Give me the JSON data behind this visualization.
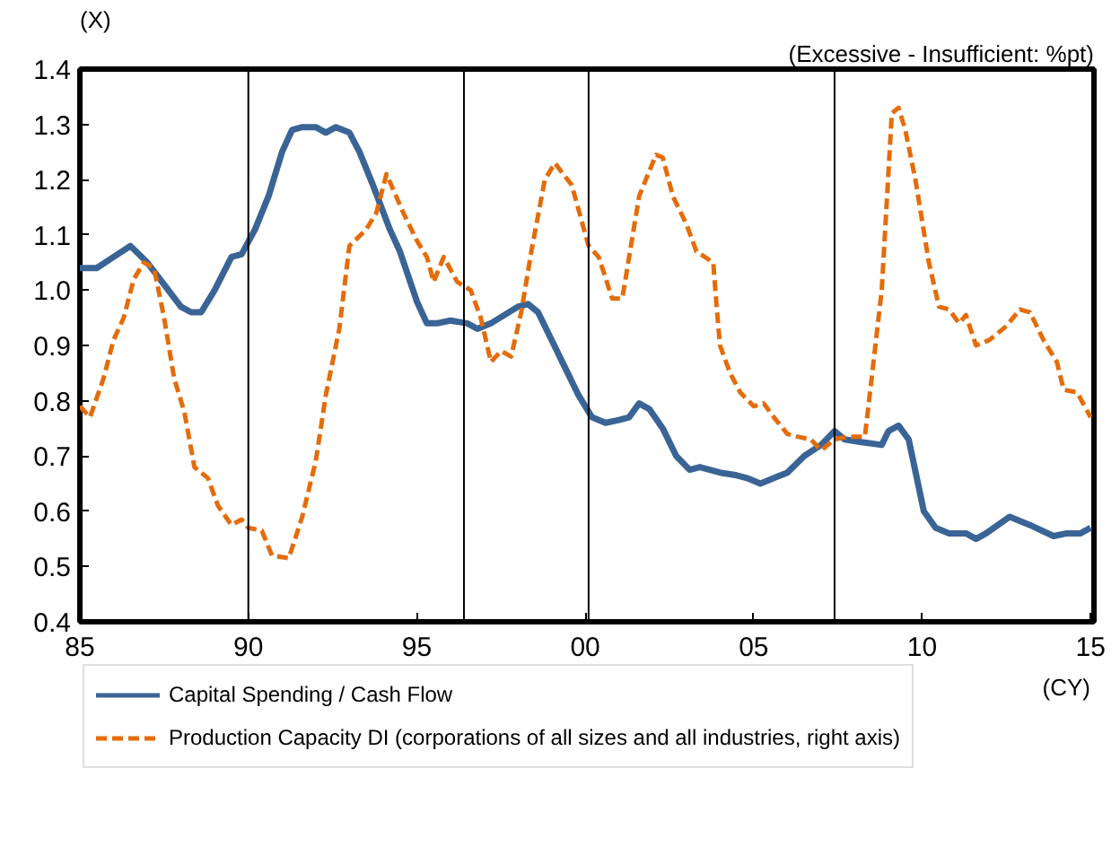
{
  "chart_data": {
    "type": "line",
    "ylabel": "(X)",
    "y2label": "(Excessive - Insufficient: %pt)",
    "annotations": [
      "(CY)"
    ],
    "xlim": [
      1985,
      2015.1
    ],
    "xticks": [
      {
        "value": 1985,
        "label": "85"
      },
      {
        "value": 1990,
        "label": "90"
      },
      {
        "value": 1995,
        "label": "95"
      },
      {
        "value": 2000,
        "label": "00"
      },
      {
        "value": 2005,
        "label": "05"
      },
      {
        "value": 2010,
        "label": "10"
      },
      {
        "value": 2015,
        "label": "15"
      }
    ],
    "ylim": [
      0.4,
      1.4
    ],
    "yticks": [
      {
        "value": 0.4,
        "label": "0.4"
      },
      {
        "value": 0.5,
        "label": "0.5"
      },
      {
        "value": 0.6,
        "label": "0.6"
      },
      {
        "value": 0.7,
        "label": "0.7"
      },
      {
        "value": 0.8,
        "label": "0.8"
      },
      {
        "value": 0.9,
        "label": "0.9"
      },
      {
        "value": 1.0,
        "label": "1.0"
      },
      {
        "value": 1.1,
        "label": "1.1"
      },
      {
        "value": 1.2,
        "label": "1.2"
      },
      {
        "value": 1.3,
        "label": "1.3"
      },
      {
        "value": 1.4,
        "label": "1.4"
      }
    ],
    "grid": false,
    "legend": "bottom",
    "tick_labels": "xy",
    "ref_lines": [
      {
        "axis": "x",
        "value": 1990.0,
        "color": "#000000"
      },
      {
        "axis": "x",
        "value": 1996.4,
        "color": "#000000"
      },
      {
        "axis": "x",
        "value": 2000.1,
        "color": "#000000"
      },
      {
        "axis": "x",
        "value": 2007.4,
        "color": "#000000"
      }
    ],
    "series": [
      {
        "name": "Capital Spending / Cash Flow",
        "color": "#3a6496",
        "line_style": "solid",
        "x": [
          1985.0,
          1985.5,
          1986.0,
          1986.5,
          1987.0,
          1987.5,
          1988.0,
          1988.3,
          1988.6,
          1989.0,
          1989.5,
          1989.8,
          1990.2,
          1990.6,
          1991.0,
          1991.3,
          1991.6,
          1992.0,
          1992.3,
          1992.6,
          1993.0,
          1993.3,
          1993.7,
          1994.2,
          1994.5,
          1995.0,
          1995.3,
          1995.6,
          1996.0,
          1996.5,
          1996.8,
          1997.2,
          1997.6,
          1998.0,
          1998.3,
          1998.6,
          1999.0,
          1999.4,
          1999.8,
          2000.2,
          2000.6,
          2001.0,
          2001.3,
          2001.6,
          2001.9,
          2002.3,
          2002.7,
          2003.1,
          2003.4,
          2004.0,
          2004.5,
          2004.8,
          2005.2,
          2005.6,
          2006.0,
          2006.5,
          2007.0,
          2007.4,
          2007.7,
          2008.2,
          2008.8,
          2009.0,
          2009.3,
          2009.6,
          2010.05,
          2010.4,
          2010.8,
          2011.3,
          2011.6,
          2011.9,
          2012.6,
          2013.2,
          2013.9,
          2014.3,
          2014.7,
          2015.0
        ],
        "values": [
          1.04,
          1.04,
          1.06,
          1.08,
          1.05,
          1.01,
          0.97,
          0.96,
          0.96,
          1.0,
          1.06,
          1.065,
          1.11,
          1.17,
          1.25,
          1.29,
          1.295,
          1.295,
          1.285,
          1.295,
          1.285,
          1.25,
          1.19,
          1.11,
          1.07,
          0.98,
          0.94,
          0.94,
          0.945,
          0.94,
          0.93,
          0.94,
          0.955,
          0.97,
          0.975,
          0.96,
          0.91,
          0.86,
          0.81,
          0.77,
          0.76,
          0.765,
          0.77,
          0.795,
          0.785,
          0.75,
          0.7,
          0.675,
          0.68,
          0.67,
          0.665,
          0.66,
          0.65,
          0.66,
          0.67,
          0.7,
          0.72,
          0.745,
          0.73,
          0.725,
          0.72,
          0.745,
          0.755,
          0.73,
          0.6,
          0.57,
          0.56,
          0.56,
          0.55,
          0.56,
          0.59,
          0.575,
          0.555,
          0.56,
          0.56,
          0.57
        ]
      },
      {
        "name": "Production Capacity DI (corporations of all sizes and all industries, right axis)",
        "color": "#e46c0a",
        "line_style": "dashed",
        "x": [
          1985.0,
          1985.3,
          1985.7,
          1986.0,
          1986.3,
          1986.6,
          1986.9,
          1987.2,
          1987.5,
          1987.8,
          1988.1,
          1988.4,
          1988.8,
          1989.1,
          1989.5,
          1989.8,
          1990.0,
          1990.4,
          1990.7,
          1991.2,
          1991.6,
          1992.0,
          1992.3,
          1992.7,
          1993.0,
          1993.5,
          1993.8,
          1994.1,
          1994.6,
          1995.0,
          1995.3,
          1995.5,
          1995.8,
          1996.2,
          1996.6,
          1996.9,
          1997.2,
          1997.5,
          1997.8,
          1998.1,
          1998.4,
          1998.8,
          1999.1,
          1999.6,
          2000.1,
          2000.4,
          2000.8,
          2001.1,
          2001.6,
          2002.1,
          2002.3,
          2002.6,
          2003.0,
          2003.3,
          2003.8,
          2003.9,
          2004.0,
          2004.3,
          2004.6,
          2005.0,
          2005.3,
          2005.6,
          2006.0,
          2006.3,
          2006.7,
          2007.0,
          2007.4,
          2007.8,
          2008.3,
          2008.5,
          2008.8,
          2009.1,
          2009.3,
          2009.5,
          2009.8,
          2010.2,
          2010.5,
          2010.8,
          2011.1,
          2011.3,
          2011.6,
          2012.0,
          2012.5,
          2012.9,
          2013.2,
          2013.6,
          2014.0,
          2014.2,
          2014.6,
          2015.0
        ],
        "values": [
          0.79,
          0.77,
          0.84,
          0.91,
          0.95,
          1.02,
          1.05,
          1.04,
          0.95,
          0.84,
          0.78,
          0.68,
          0.66,
          0.61,
          0.575,
          0.585,
          0.57,
          0.565,
          0.52,
          0.515,
          0.59,
          0.69,
          0.81,
          0.93,
          1.08,
          1.11,
          1.14,
          1.21,
          1.14,
          1.09,
          1.06,
          1.015,
          1.06,
          1.015,
          1.0,
          0.95,
          0.87,
          0.89,
          0.88,
          0.96,
          1.07,
          1.2,
          1.23,
          1.19,
          1.08,
          1.06,
          0.985,
          0.985,
          1.17,
          1.245,
          1.24,
          1.17,
          1.12,
          1.07,
          1.05,
          0.97,
          0.9,
          0.85,
          0.815,
          0.79,
          0.795,
          0.77,
          0.74,
          0.735,
          0.73,
          0.71,
          0.73,
          0.735,
          0.735,
          0.84,
          1.0,
          1.32,
          1.33,
          1.29,
          1.2,
          1.05,
          0.97,
          0.965,
          0.94,
          0.955,
          0.9,
          0.91,
          0.935,
          0.965,
          0.96,
          0.91,
          0.87,
          0.82,
          0.815,
          0.77
        ]
      }
    ]
  }
}
